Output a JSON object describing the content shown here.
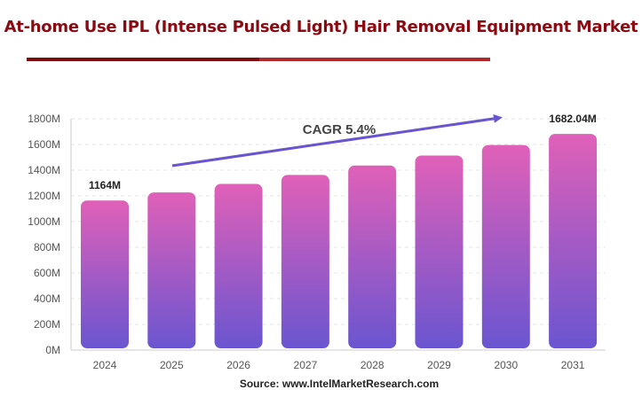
{
  "title": "At-home Use IPL (Intense Pulsed Light) Hair Removal Equipment Market",
  "colors": {
    "title": "#8b0a12",
    "bar_top": "#e060b8",
    "bar_bottom": "#6a55d0",
    "arrow": "#6a55d0"
  },
  "chart_data": {
    "type": "bar",
    "title": "At-home Use IPL (Intense Pulsed Light) Hair Removal Equipment Market",
    "categories": [
      "2024",
      "2025",
      "2026",
      "2027",
      "2028",
      "2029",
      "2030",
      "2031"
    ],
    "values": [
      1164,
      1227,
      1293,
      1363,
      1436,
      1514,
      1596,
      1682.04
    ],
    "unit": "M",
    "ylim": [
      0,
      1800
    ],
    "yticks": [
      "0M",
      "200M",
      "400M",
      "600M",
      "800M",
      "1000M",
      "1200M",
      "1400M",
      "1600M",
      "1800M"
    ],
    "grid": true,
    "data_labels": {
      "first": "1164M",
      "last": "1682.04M"
    },
    "annotation": "CAGR 5.4%",
    "source": "Source: www.IntelMarketResearch.com"
  }
}
